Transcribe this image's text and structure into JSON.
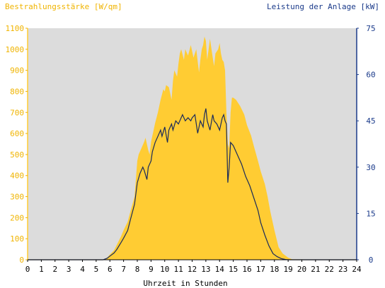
{
  "chart_data": {
    "type": "area",
    "left_axis_title": "Bestrahlungsstärke [W/qm]",
    "right_axis_title": "Leistung der Anlage [kW]",
    "xlabel": "Uhrzeit in Stunden",
    "xlim": [
      0,
      24
    ],
    "ylim_left": [
      0,
      1100
    ],
    "ylim_right": [
      0,
      75
    ],
    "x_ticks": [
      "0",
      "1",
      "2",
      "3",
      "4",
      "5",
      "6",
      "7",
      "8",
      "9",
      "10",
      "11",
      "12",
      "13",
      "14",
      "15",
      "16",
      "17",
      "18",
      "19",
      "20",
      "21",
      "22",
      "23",
      "24"
    ],
    "y_ticks_left": [
      "0",
      "100",
      "200",
      "300",
      "400",
      "500",
      "600",
      "700",
      "800",
      "900",
      "1000",
      "1100"
    ],
    "y_ticks_right": [
      "0",
      "15",
      "30",
      "45",
      "60",
      "75"
    ],
    "grid": false,
    "colors": {
      "plot_background": "#dcdcdc",
      "irradiance_fill": "#ffcc33",
      "power_line": "#1a2a5a",
      "left_axis_text": "#f0b400",
      "right_axis_text": "#1a3a8a",
      "x_axis_text": "#000000"
    },
    "series": [
      {
        "axis": "left",
        "style": "area",
        "x": [
          0,
          5.5,
          5.8,
          6,
          6.3,
          6.5,
          6.8,
          7,
          7.3,
          7.5,
          7.8,
          8,
          8.1,
          8.3,
          8.5,
          8.6,
          8.8,
          8.9,
          9,
          9.2,
          9.3,
          9.5,
          9.7,
          9.9,
          10,
          10.1,
          10.3,
          10.5,
          10.6,
          10.7,
          10.9,
          11,
          11.1,
          11.2,
          11.4,
          11.5,
          11.7,
          11.9,
          12,
          12.1,
          12.3,
          12.5,
          12.6,
          12.7,
          12.8,
          12.9,
          13,
          13.1,
          13.2,
          13.3,
          13.5,
          13.6,
          13.7,
          13.9,
          14,
          14.1,
          14.2,
          14.3,
          14.4,
          14.5,
          14.6,
          14.7,
          14.8,
          14.9,
          15,
          15.2,
          15.5,
          15.8,
          16,
          16.3,
          16.5,
          16.8,
          17,
          17.3,
          17.5,
          17.7,
          18,
          18.3,
          18.6,
          19,
          19.3,
          24
        ],
        "y": [
          0,
          0,
          10,
          25,
          45,
          70,
          110,
          140,
          180,
          230,
          300,
          470,
          500,
          530,
          560,
          580,
          520,
          500,
          560,
          620,
          650,
          700,
          760,
          810,
          800,
          830,
          820,
          760,
          850,
          900,
          870,
          930,
          980,
          1000,
          950,
          1000,
          970,
          1020,
          990,
          960,
          1000,
          890,
          950,
          1000,
          1020,
          1060,
          1040,
          950,
          1000,
          1050,
          960,
          920,
          980,
          1000,
          1030,
          980,
          950,
          940,
          900,
          700,
          550,
          530,
          700,
          770,
          770,
          760,
          730,
          690,
          640,
          590,
          540,
          470,
          420,
          360,
          300,
          230,
          140,
          60,
          30,
          10,
          2,
          0
        ]
      },
      {
        "axis": "right",
        "style": "line",
        "x": [
          0,
          5.5,
          5.8,
          6,
          6.3,
          6.5,
          6.8,
          7,
          7.3,
          7.5,
          7.8,
          8,
          8.2,
          8.4,
          8.5,
          8.7,
          8.8,
          9,
          9.1,
          9.3,
          9.5,
          9.7,
          9.8,
          10,
          10.2,
          10.3,
          10.5,
          10.6,
          10.8,
          11,
          11.2,
          11.3,
          11.5,
          11.7,
          11.9,
          12,
          12.2,
          12.4,
          12.6,
          12.8,
          12.9,
          13,
          13.1,
          13.3,
          13.5,
          13.6,
          13.8,
          14,
          14.2,
          14.3,
          14.4,
          14.5,
          14.6,
          14.7,
          14.8,
          15,
          15.3,
          15.6,
          15.9,
          16.2,
          16.5,
          16.8,
          17,
          17.3,
          17.6,
          17.9,
          18.2,
          18.5,
          18.8,
          19,
          19.2,
          24
        ],
        "y": [
          0,
          0,
          0.5,
          1.2,
          2.2,
          3.3,
          5.5,
          7,
          9.5,
          13,
          18,
          25,
          28,
          30,
          29,
          26,
          30,
          32,
          35,
          38,
          40,
          42,
          40,
          43,
          38,
          42,
          44,
          42,
          45,
          44,
          46,
          47,
          45,
          46,
          45,
          46,
          47,
          41,
          45,
          43,
          47,
          49,
          45,
          42,
          47,
          45,
          44,
          42,
          46,
          47,
          45,
          44,
          25,
          30,
          38,
          37,
          34,
          31,
          27,
          24,
          20,
          16,
          12,
          8,
          4.5,
          2,
          1,
          0.4,
          0.1,
          0,
          0,
          0
        ]
      }
    ]
  }
}
